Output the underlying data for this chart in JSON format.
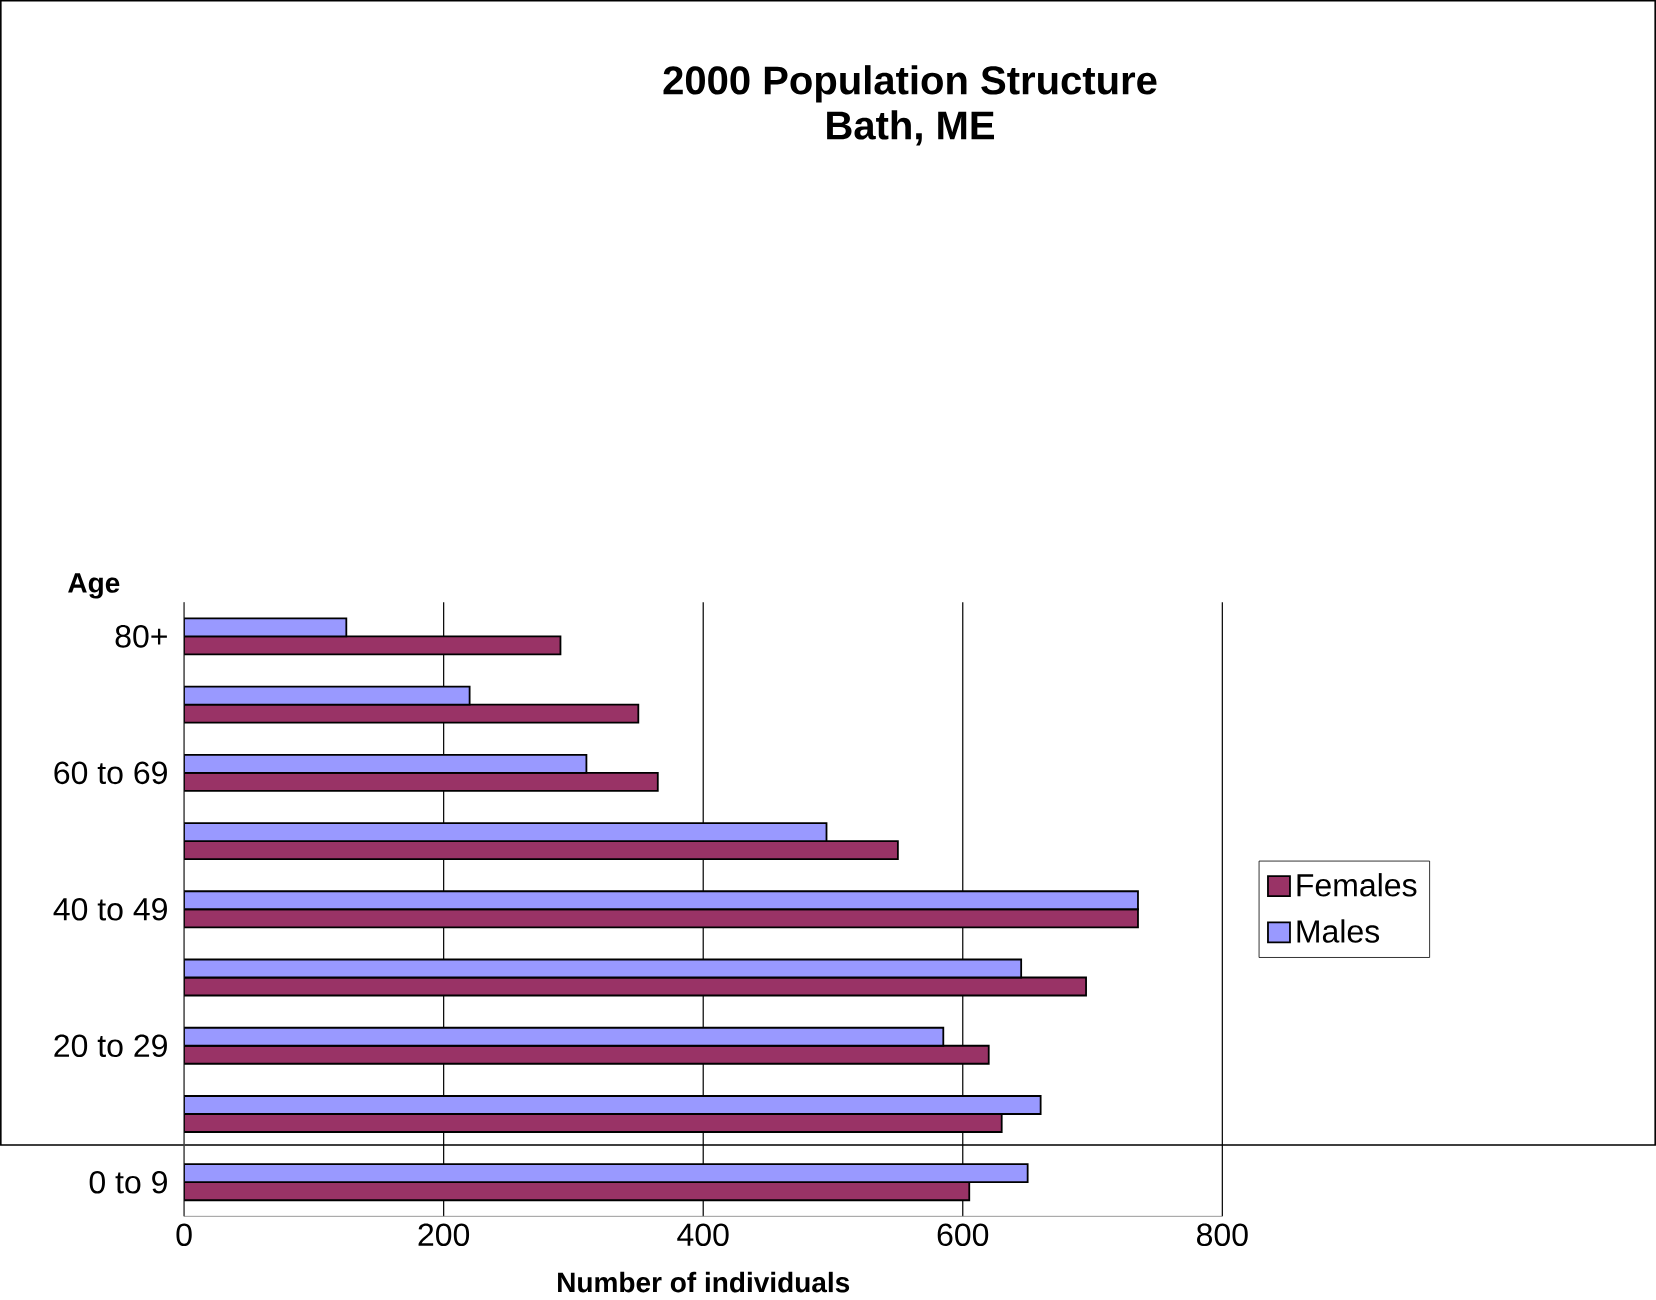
{
  "chart_data": {
    "type": "bar",
    "orientation": "horizontal",
    "title": "2000 Population Structure",
    "subtitle": "Bath, ME",
    "xlabel": "Number of individuals",
    "ylabel": "Age",
    "categories": [
      "80+",
      null,
      "60 to 69",
      null,
      "40 to 49",
      null,
      "20 to 29",
      null,
      "0 to 9"
    ],
    "series": [
      {
        "name": "Females",
        "color": "#993366",
        "values": [
          290,
          350,
          365,
          550,
          735,
          695,
          620,
          630,
          605
        ]
      },
      {
        "name": "Males",
        "color": "#9999ff",
        "values": [
          125,
          220,
          310,
          495,
          735,
          645,
          585,
          660,
          650
        ]
      }
    ],
    "xlim": [
      0,
      800
    ],
    "xticks": [
      0,
      200,
      400,
      600,
      800
    ],
    "grid": "x",
    "legend": "right"
  }
}
